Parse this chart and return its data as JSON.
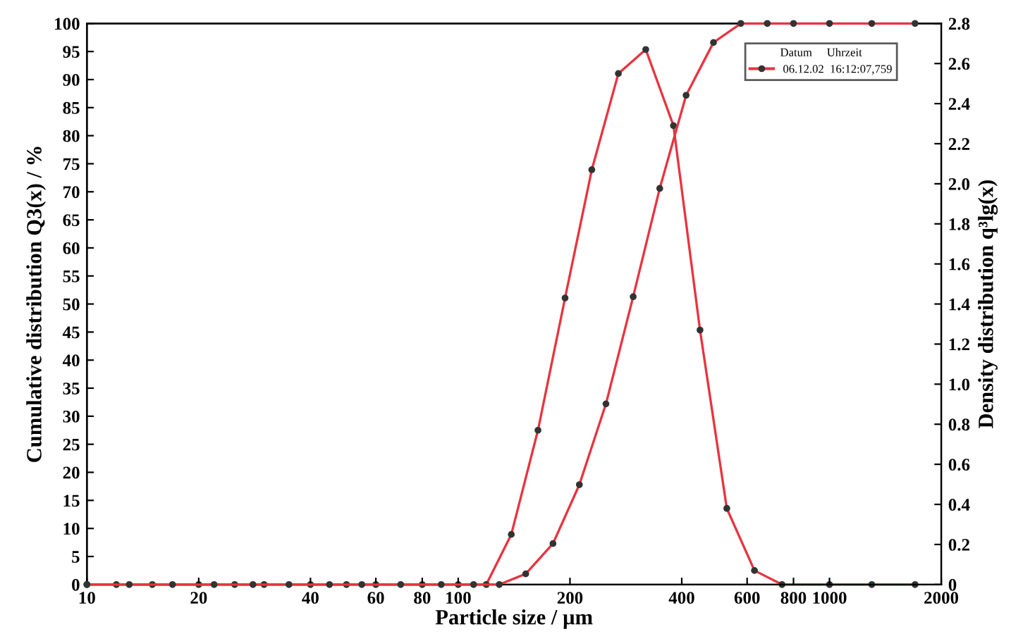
{
  "chart_data": {
    "type": "line",
    "xlabel": "Particle size / µm",
    "ylabel": "Cumulative distribution Q3(x) / %",
    "y2label": "Density distribution q³lg(x)",
    "legend_title": "Datum     Uhrzeit",
    "log": "x",
    "xlim": [
      10,
      2000
    ],
    "xticks": [
      10,
      20,
      40,
      60,
      80,
      100,
      200,
      400,
      600,
      800,
      1000,
      2000
    ],
    "ylim": [
      0,
      100
    ],
    "yticks": [
      0,
      5,
      10,
      15,
      20,
      25,
      30,
      35,
      40,
      45,
      50,
      55,
      60,
      65,
      70,
      75,
      80,
      85,
      90,
      95,
      100
    ],
    "y2lim": [
      0,
      2.8
    ],
    "y2ticks": [
      {
        "value": 0,
        "label": "0"
      },
      0.2,
      0.4,
      0.6,
      0.8,
      {
        "value": 1,
        "label": "1.0"
      },
      1.2,
      1.4,
      1.6,
      1.8,
      {
        "value": 2,
        "label": "2.0"
      },
      2.2,
      2.4,
      2.6,
      2.8
    ],
    "marker": "circle",
    "line_style": "solid",
    "legend": "top right",
    "grid": false,
    "series": [
      {
        "name": "06.12.02  16:12:07,759",
        "color": "#e8343f",
        "axis": "y2",
        "x": [
          10,
          12,
          15,
          20,
          25,
          30,
          40,
          50,
          60,
          80,
          100,
          119,
          139,
          164,
          194,
          229,
          270,
          320,
          380,
          448,
          529,
          628,
          745,
          1000,
          1300,
          1700
        ],
        "values": [
          0,
          0,
          0,
          0,
          0,
          0,
          0,
          0,
          0,
          0,
          0,
          0,
          0.25,
          0.77,
          1.43,
          2.07,
          2.55,
          2.67,
          2.29,
          1.27,
          0.38,
          0.07,
          0,
          0,
          0,
          0
        ]
      },
      {
        "color": "#e8343f",
        "x": [
          10,
          13,
          17,
          22,
          28,
          35,
          45,
          55,
          70,
          90,
          110,
          129,
          152,
          180,
          212,
          250,
          296,
          349,
          411,
          487,
          577,
          680,
          800,
          1000,
          1300,
          1700
        ],
        "values": [
          0,
          0,
          0,
          0,
          0,
          0,
          0,
          0,
          0,
          0,
          0,
          0,
          1.9,
          7.3,
          17.8,
          32.2,
          51.3,
          70.6,
          87.2,
          96.6,
          100,
          100,
          100,
          100,
          100,
          100
        ]
      }
    ]
  }
}
